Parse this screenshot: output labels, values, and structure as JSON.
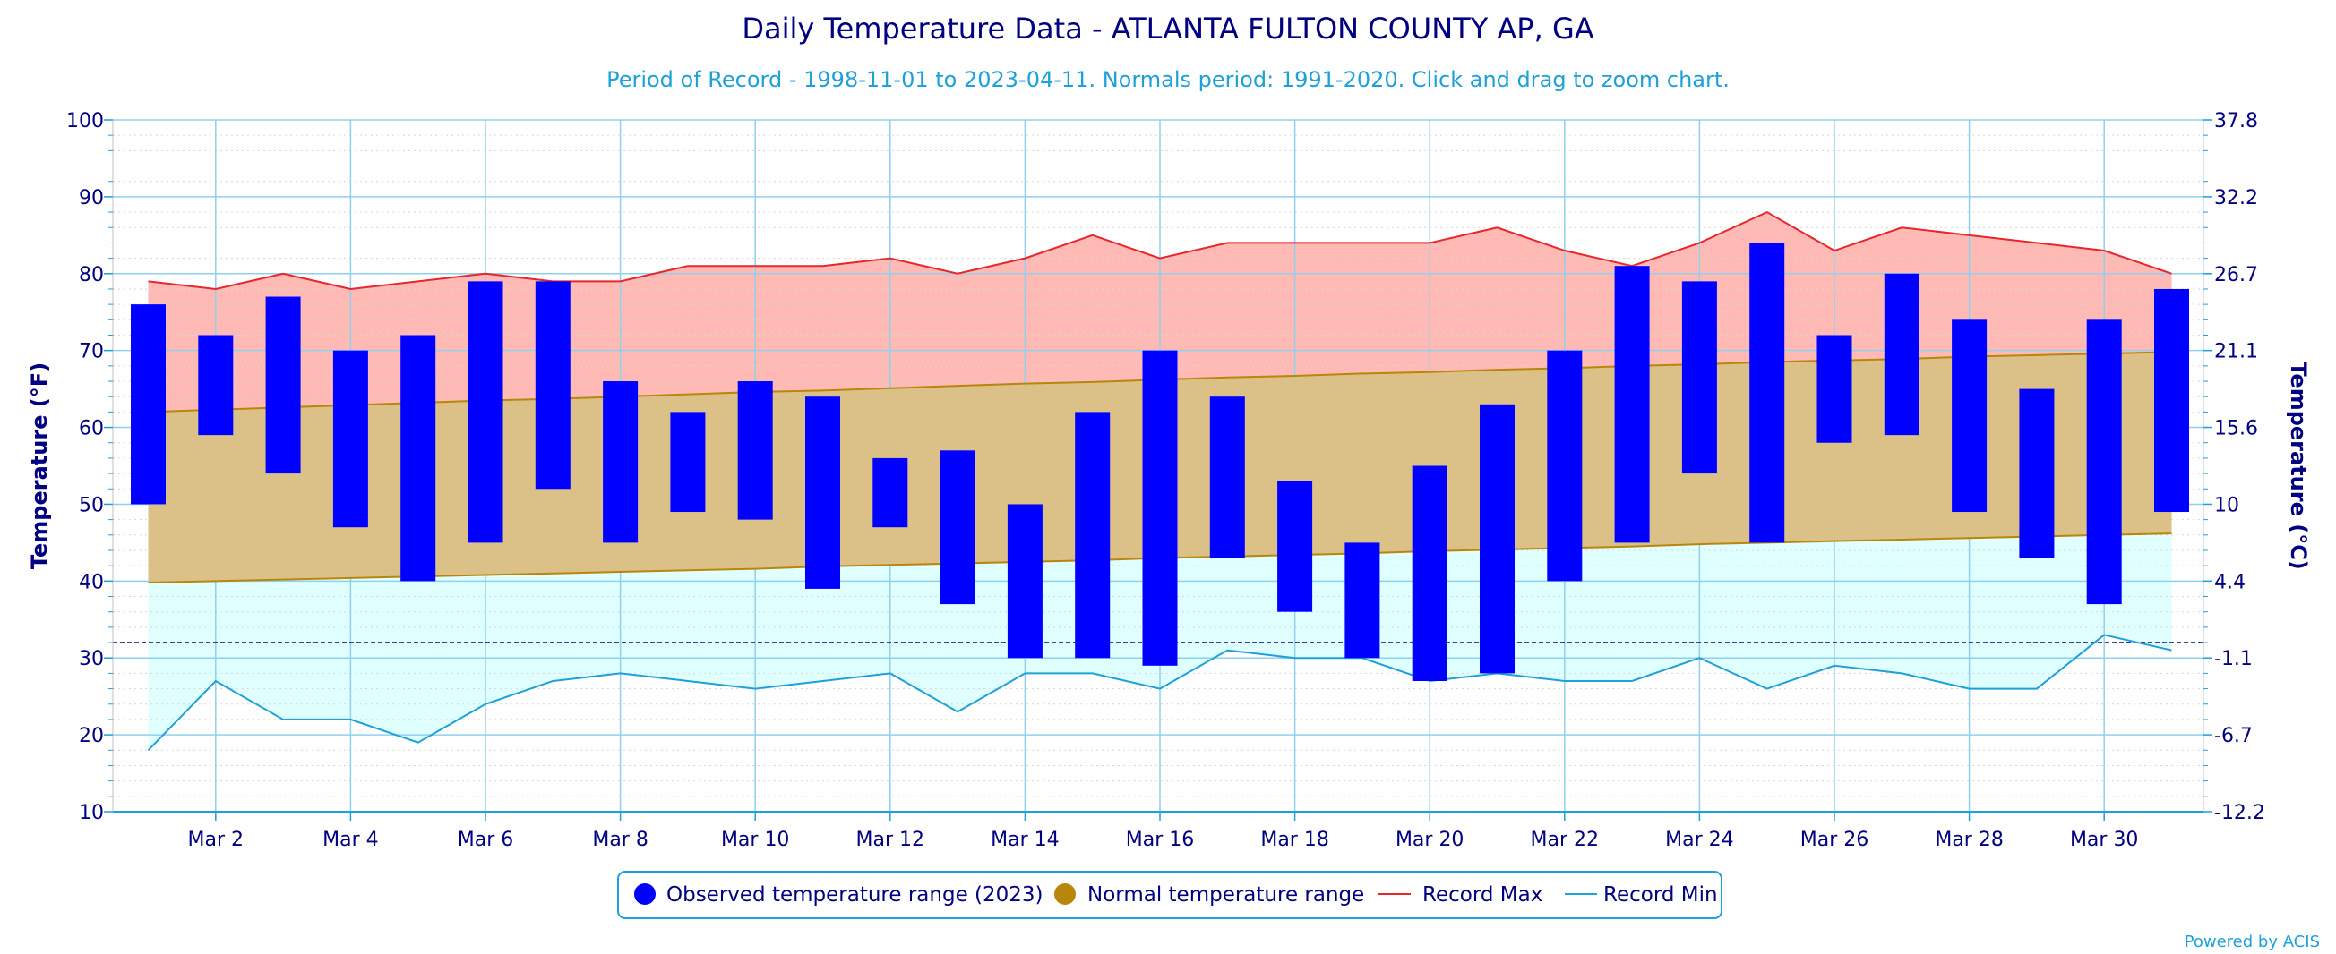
{
  "chart_data": {
    "type": "bar",
    "title": "Daily Temperature Data - ATLANTA FULTON COUNTY AP, GA",
    "subtitle": "Period of Record - 1998-11-01 to 2023-04-11. Normals period: 1991-2020. Click and drag to zoom chart.",
    "ylabel_left": "Temperature (°F)",
    "ylabel_right": "Temperature (°C)",
    "ylim": [
      10,
      100
    ],
    "y_ticks_f": [
      "10",
      "20",
      "30",
      "40",
      "50",
      "60",
      "70",
      "80",
      "90",
      "100"
    ],
    "y_ticks_c": [
      "-12.2",
      "-6.7",
      "-1.1",
      "4.4",
      "10",
      "15.6",
      "21.1",
      "26.7",
      "32.2",
      "37.8"
    ],
    "x_tick_labels": [
      "Mar 2",
      "Mar 4",
      "Mar 6",
      "Mar 8",
      "Mar 10",
      "Mar 12",
      "Mar 14",
      "Mar 16",
      "Mar 18",
      "Mar 20",
      "Mar 22",
      "Mar 24",
      "Mar 26",
      "Mar 28",
      "Mar 30"
    ],
    "x_tick_days": [
      2,
      4,
      6,
      8,
      10,
      12,
      14,
      16,
      18,
      20,
      22,
      24,
      26,
      28,
      30
    ],
    "days": [
      1,
      2,
      3,
      4,
      5,
      6,
      7,
      8,
      9,
      10,
      11,
      12,
      13,
      14,
      15,
      16,
      17,
      18,
      19,
      20,
      21,
      22,
      23,
      24,
      25,
      26,
      27,
      28,
      29,
      30,
      31
    ],
    "freezing_line": 32,
    "grid": true,
    "legend_position": "bottom-center",
    "series": [
      {
        "name": "Observed temperature range (2023)",
        "type": "range-bar",
        "color": "#0000ff",
        "low": [
          50,
          59,
          54,
          47,
          40,
          45,
          52,
          45,
          49,
          48,
          39,
          47,
          37,
          30,
          30,
          29,
          43,
          36,
          30,
          27,
          28,
          40,
          45,
          54,
          45,
          58,
          59,
          49,
          43,
          37,
          49
        ],
        "high": [
          76,
          72,
          77,
          70,
          72,
          79,
          79,
          66,
          62,
          66,
          64,
          56,
          57,
          50,
          62,
          70,
          64,
          53,
          45,
          55,
          63,
          70,
          81,
          79,
          84,
          72,
          80,
          74,
          65,
          74,
          78
        ]
      },
      {
        "name": "Normal temperature range",
        "type": "range-area",
        "color": "#b8860b",
        "low": [
          39.8,
          40.0,
          40.2,
          40.4,
          40.6,
          40.8,
          41.0,
          41.2,
          41.4,
          41.6,
          41.9,
          42.1,
          42.3,
          42.5,
          42.7,
          43.0,
          43.2,
          43.4,
          43.6,
          43.9,
          44.1,
          44.3,
          44.5,
          44.8,
          45.0,
          45.2,
          45.4,
          45.6,
          45.8,
          46.0,
          46.2
        ],
        "high": [
          62.0,
          62.3,
          62.6,
          62.9,
          63.2,
          63.5,
          63.7,
          64.0,
          64.3,
          64.6,
          64.8,
          65.1,
          65.4,
          65.7,
          65.9,
          66.2,
          66.5,
          66.7,
          67.0,
          67.2,
          67.5,
          67.7,
          68.0,
          68.2,
          68.5,
          68.7,
          68.9,
          69.2,
          69.4,
          69.6,
          69.8
        ]
      },
      {
        "name": "Record Max",
        "type": "line",
        "color": "#e8262b",
        "values": [
          79,
          78,
          80,
          78,
          79,
          80,
          79,
          79,
          81,
          81,
          81,
          82,
          80,
          82,
          85,
          82,
          84,
          84,
          84,
          84,
          86,
          83,
          81,
          84,
          88,
          83,
          86,
          85,
          84,
          83,
          80
        ]
      },
      {
        "name": "Record Min",
        "type": "line",
        "color": "#1ea0d8",
        "values": [
          18,
          27,
          22,
          22,
          19,
          24,
          27,
          28,
          27,
          26,
          27,
          28,
          23,
          28,
          28,
          26,
          31,
          30,
          30,
          27,
          28,
          27,
          27,
          30,
          26,
          29,
          28,
          26,
          26,
          33,
          31
        ]
      }
    ],
    "credit": "Powered by ACIS"
  }
}
